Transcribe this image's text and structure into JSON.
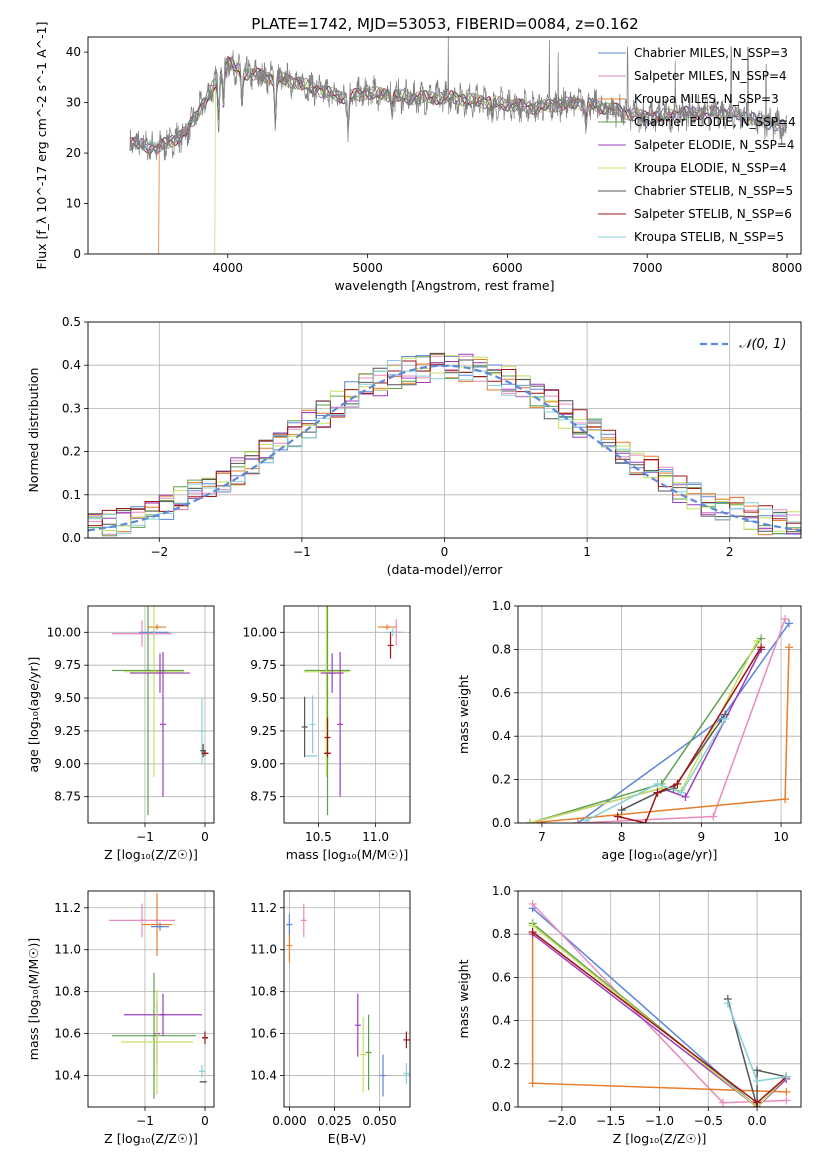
{
  "title": "PLATE=1742, MJD=53053, FIBERID=0084, z=0.162",
  "colors": {
    "chabrier_miles": "#5b86d9",
    "salpeter_miles": "#e88bc0",
    "kroupa_miles": "#e87d2a",
    "chabrier_elodie": "#5fa04e",
    "salpeter_elodie": "#9b3fc0",
    "kroupa_elodie": "#c8e060",
    "chabrier_stelib": "#555555",
    "salpeter_stelib": "#a01515",
    "kroupa_stelib": "#86cfd8",
    "gaussian": "#5b8bd8",
    "data": "#808080"
  },
  "chart_data": [
    {
      "id": "spectrum",
      "type": "line",
      "xlabel": "wavelength [Angstrom, rest frame]",
      "ylabel": "Flux [f_λ 10^-17 erg cm^-2 s^-1 A^-1]",
      "xlim": [
        3000,
        8100
      ],
      "ylim": [
        0,
        43
      ],
      "xticks": [
        "4000",
        "5000",
        "6000",
        "7000",
        "8000"
      ],
      "yticks": [
        "0",
        "10",
        "20",
        "30",
        "40"
      ],
      "legend_position": "upper right",
      "legend": [
        "Chabrier MILES, N_SSP=3",
        "Salpeter MILES, N_SSP=4",
        "Kroupa MILES, N_SSP=3",
        "Chabrier ELODIE, N_SSP=4",
        "Salpeter ELODIE, N_SSP=4",
        "Kroupa ELODIE, N_SSP=4",
        "Chabrier STELIB, N_SSP=5",
        "Salpeter STELIB, N_SSP=6",
        "Kroupa STELIB, N_SSP=5"
      ],
      "continuum": [
        [
          3300,
          22
        ],
        [
          3500,
          21
        ],
        [
          3700,
          24
        ],
        [
          3850,
          31
        ],
        [
          4000,
          38
        ],
        [
          4100,
          36
        ],
        [
          4300,
          35
        ],
        [
          4500,
          34
        ],
        [
          4700,
          32
        ],
        [
          4850,
          31
        ],
        [
          5000,
          32
        ],
        [
          5300,
          31
        ],
        [
          5600,
          31
        ],
        [
          5900,
          30
        ],
        [
          6200,
          29
        ],
        [
          6500,
          30
        ],
        [
          6700,
          29
        ],
        [
          7000,
          27
        ],
        [
          7300,
          28
        ],
        [
          7600,
          28
        ],
        [
          8000,
          25
        ]
      ],
      "dropouts": [
        [
          3500,
          "kroupa_miles"
        ],
        [
          3900,
          "kroupa_elodie"
        ],
        [
          6780,
          "kroupa_elodie"
        ],
        [
          7400,
          "salpeter_stelib"
        ]
      ]
    },
    {
      "id": "residuals",
      "type": "histogram",
      "xlabel": "(data-model)/error",
      "ylabel": "Normed distribution",
      "xlim": [
        -2.5,
        2.5
      ],
      "ylim": [
        0,
        0.5
      ],
      "xticks": [
        "−2",
        "−1",
        "0",
        "1",
        "2"
      ],
      "yticks": [
        "0.0",
        "0.1",
        "0.2",
        "0.3",
        "0.4",
        "0.5"
      ],
      "legend": [
        "𝒩(0, 1)"
      ],
      "legend_position": "upper right",
      "bin_width": 0.1
    },
    {
      "id": "age_vs_Z",
      "type": "errorbar",
      "xlabel": "Z [log₁₀(Z/Z☉)]",
      "ylabel": "age  [log₁₀(age/yr)]",
      "xlim": [
        -1.95,
        0.15
      ],
      "ylim": [
        8.55,
        10.2
      ],
      "xticks": [
        "−1",
        "0"
      ],
      "yticks": [
        "8.75",
        "9.00",
        "9.25",
        "9.50",
        "9.75",
        "10.00"
      ],
      "points": [
        {
          "model": "salpeter_miles",
          "x": -1.05,
          "y": 9.99,
          "xerr": 0.5,
          "yerr": 0.1
        },
        {
          "model": "chabrier_miles",
          "x": -0.85,
          "y": 10.0,
          "xerr": 0.25,
          "yerr": 0.05
        },
        {
          "model": "kroupa_miles",
          "x": -0.8,
          "y": 10.04,
          "xerr": 0.15,
          "yerr": 0.02
        },
        {
          "model": "chabrier_elodie",
          "x": -0.95,
          "y": 9.71,
          "xerr": 0.6,
          "yerr": 1.1
        },
        {
          "model": "kroupa_elodie",
          "x": -0.85,
          "y": 9.7,
          "xerr": 0.5,
          "yerr": 0.8
        },
        {
          "model": "salpeter_elodie",
          "x": -0.75,
          "y": 9.69,
          "xerr": 0.5,
          "yerr": 0.15
        },
        {
          "model": "salpeter_elodie",
          "x": -0.7,
          "y": 9.3,
          "xerr": 0.0,
          "yerr": 0.55
        },
        {
          "model": "kroupa_stelib",
          "x": -0.05,
          "y": 9.25,
          "xerr": 0.03,
          "yerr": 0.25
        },
        {
          "model": "salpeter_stelib",
          "x": 0.0,
          "y": 9.08,
          "xerr": 0.06,
          "yerr": 0.02
        },
        {
          "model": "chabrier_stelib",
          "x": -0.03,
          "y": 9.1,
          "xerr": 0.03,
          "yerr": 0.05
        }
      ]
    },
    {
      "id": "age_vs_mass",
      "type": "errorbar",
      "xlabel": "mass [log₁₀(M/M☉)]",
      "ylabel": "",
      "xlim": [
        10.2,
        11.3
      ],
      "ylim": [
        8.55,
        10.2
      ],
      "xticks": [
        "10.5",
        "11.0"
      ],
      "yticks": [
        "8.75",
        "9.00",
        "9.25",
        "9.50",
        "9.75",
        "10.00"
      ],
      "points": [
        {
          "model": "kroupa_miles",
          "x": 11.1,
          "y": 10.04,
          "xerr": 0.08,
          "yerr": 0.02
        },
        {
          "model": "salpeter_miles",
          "x": 11.18,
          "y": 10.0,
          "xerr": 0.05,
          "yerr": 0.1
        },
        {
          "model": "kroupa_stelib",
          "x": 11.15,
          "y": 10.0,
          "xerr": 0.05,
          "yerr": 0.03
        },
        {
          "model": "salpeter_stelib",
          "x": 11.13,
          "y": 9.9,
          "xerr": 0.0,
          "yerr": 0.1
        },
        {
          "model": "chabrier_elodie",
          "x": 10.58,
          "y": 9.71,
          "xerr": 0.2,
          "yerr": 1.1
        },
        {
          "model": "kroupa_elodie",
          "x": 10.57,
          "y": 9.7,
          "xerr": 0.2,
          "yerr": 0.8
        },
        {
          "model": "salpeter_elodie",
          "x": 10.62,
          "y": 9.69,
          "xerr": 0.1,
          "yerr": 0.15
        },
        {
          "model": "salpeter_elodie",
          "x": 10.69,
          "y": 9.3,
          "xerr": 0.0,
          "yerr": 0.55
        },
        {
          "model": "chabrier_stelib",
          "x": 10.38,
          "y": 9.28,
          "xerr": 0.0,
          "yerr": 0.23
        },
        {
          "model": "kroupa_stelib",
          "x": 10.44,
          "y": 9.06,
          "xerr": 0.05,
          "yerr": 0.0
        },
        {
          "model": "kroupa_stelib",
          "x": 10.45,
          "y": 9.3,
          "xerr": 0.0,
          "yerr": 0.22
        },
        {
          "model": "salpeter_stelib",
          "x": 10.58,
          "y": 9.08,
          "xerr": 0.03,
          "yerr": 0.0
        },
        {
          "model": "salpeter_stelib",
          "x": 10.58,
          "y": 9.2,
          "xerr": 0.0,
          "yerr": 0.15
        }
      ]
    },
    {
      "id": "weight_vs_age",
      "type": "line",
      "xlabel": "age  [log₁₀(age/yr)]",
      "ylabel": "mass weight",
      "xlim": [
        6.7,
        10.25
      ],
      "ylim": [
        0,
        1.0
      ],
      "xticks": [
        "7",
        "8",
        "9",
        "10"
      ],
      "yticks": [
        "0.0",
        "0.2",
        "0.4",
        "0.6",
        "0.8",
        "1.0"
      ],
      "series": [
        {
          "model": "chabrier_miles",
          "x": [
            7.45,
            9.25,
            10.1
          ],
          "y": [
            0.0,
            0.48,
            0.92
          ]
        },
        {
          "model": "salpeter_miles",
          "x": [
            7.45,
            9.15,
            10.05
          ],
          "y": [
            0.0,
            0.03,
            0.94
          ]
        },
        {
          "model": "kroupa_miles",
          "x": [
            6.85,
            10.05,
            10.1
          ],
          "y": [
            0.0,
            0.11,
            0.81
          ]
        },
        {
          "model": "chabrier_elodie",
          "x": [
            6.85,
            8.5,
            9.75
          ],
          "y": [
            0.0,
            0.18,
            0.85
          ]
        },
        {
          "model": "salpeter_elodie",
          "x": [
            6.85,
            8.5,
            8.8,
            9.75
          ],
          "y": [
            0.0,
            0.16,
            0.12,
            0.8
          ]
        },
        {
          "model": "kroupa_elodie",
          "x": [
            6.85,
            8.5,
            8.75,
            9.7
          ],
          "y": [
            0.0,
            0.16,
            0.15,
            0.84
          ]
        },
        {
          "model": "chabrier_stelib",
          "x": [
            8.0,
            8.45,
            8.65,
            9.3
          ],
          "y": [
            0.06,
            0.14,
            0.16,
            0.5
          ]
        },
        {
          "model": "salpeter_stelib",
          "x": [
            7.95,
            8.3,
            8.45,
            8.7,
            9.75
          ],
          "y": [
            0.03,
            0.0,
            0.14,
            0.18,
            0.81
          ]
        },
        {
          "model": "kroupa_stelib",
          "x": [
            7.55,
            8.45,
            8.75,
            9.3
          ],
          "y": [
            0.01,
            0.18,
            0.14,
            0.48
          ]
        }
      ]
    },
    {
      "id": "mass_vs_Z",
      "type": "errorbar",
      "xlabel": "Z [log₁₀(Z/Z☉)]",
      "ylabel": "mass [log₁₀(M/M☉)]",
      "xlim": [
        -1.95,
        0.15
      ],
      "ylim": [
        10.25,
        11.28
      ],
      "xticks": [
        "−1",
        "0"
      ],
      "yticks": [
        "10.4",
        "10.6",
        "10.8",
        "11.0",
        "11.2"
      ],
      "points": [
        {
          "model": "salpeter_miles",
          "x": -1.05,
          "y": 11.14,
          "xerr": 0.55,
          "yerr": 0.08
        },
        {
          "model": "kroupa_miles",
          "x": -0.8,
          "y": 11.12,
          "xerr": 0.25,
          "yerr": 0.15
        },
        {
          "model": "chabrier_miles",
          "x": -0.75,
          "y": 11.11,
          "xerr": 0.15,
          "yerr": 0.02
        },
        {
          "model": "salpeter_elodie",
          "x": -0.7,
          "y": 10.69,
          "xerr": 0.65,
          "yerr": 0.1
        },
        {
          "model": "salpeter_elodie",
          "x": -0.8,
          "y": 10.6,
          "xerr": 0.0,
          "yerr": 0.15
        },
        {
          "model": "chabrier_elodie",
          "x": -0.85,
          "y": 10.59,
          "xerr": 0.7,
          "yerr": 0.3
        },
        {
          "model": "kroupa_elodie",
          "x": -0.8,
          "y": 10.56,
          "xerr": 0.6,
          "yerr": 0.25
        },
        {
          "model": "salpeter_stelib",
          "x": 0.0,
          "y": 10.58,
          "xerr": 0.05,
          "yerr": 0.03
        },
        {
          "model": "kroupa_stelib",
          "x": -0.05,
          "y": 10.42,
          "xerr": 0.03,
          "yerr": 0.03
        },
        {
          "model": "chabrier_stelib",
          "x": -0.03,
          "y": 10.37,
          "xerr": 0.06,
          "yerr": 0.0
        }
      ]
    },
    {
      "id": "mass_vs_ebv",
      "type": "errorbar",
      "xlabel": "E(B-V)",
      "ylabel": "",
      "xlim": [
        -0.003,
        0.067
      ],
      "ylim": [
        10.25,
        11.28
      ],
      "xticks": [
        "0.000",
        "0.025",
        "0.050"
      ],
      "yticks": [
        "10.4",
        "10.6",
        "10.8",
        "11.0",
        "11.2"
      ],
      "points": [
        {
          "model": "kroupa_miles",
          "x": 0.0,
          "y": 11.02,
          "xerr": 0.0,
          "yerr": 0.08
        },
        {
          "model": "chabrier_miles",
          "x": 0.0,
          "y": 11.12,
          "xerr": 0.0,
          "yerr": 0.05
        },
        {
          "model": "salpeter_miles",
          "x": 0.008,
          "y": 11.14,
          "xerr": 0.0,
          "yerr": 0.08
        },
        {
          "model": "salpeter_elodie",
          "x": 0.038,
          "y": 10.64,
          "xerr": 0.0,
          "yerr": 0.15
        },
        {
          "model": "kroupa_elodie",
          "x": 0.041,
          "y": 10.5,
          "xerr": 0.0,
          "yerr": 0.18
        },
        {
          "model": "chabrier_elodie",
          "x": 0.044,
          "y": 10.51,
          "xerr": 0.0,
          "yerr": 0.18
        },
        {
          "model": "chabrier_miles",
          "x": 0.052,
          "y": 10.4,
          "xerr": 0.0,
          "yerr": 0.1
        },
        {
          "model": "salpeter_stelib",
          "x": 0.065,
          "y": 10.57,
          "xerr": 0.0,
          "yerr": 0.04
        },
        {
          "model": "kroupa_stelib",
          "x": 0.065,
          "y": 10.41,
          "xerr": 0.0,
          "yerr": 0.05
        }
      ]
    },
    {
      "id": "weight_vs_Z",
      "type": "line",
      "xlabel": "Z [log₁₀(Z/Z☉)]",
      "ylabel": "mass weight",
      "xlim": [
        -2.45,
        0.45
      ],
      "ylim": [
        0,
        1.0
      ],
      "xticks": [
        "−2.0",
        "−1.5",
        "−1.0",
        "−0.5",
        "0.0"
      ],
      "yticks": [
        "0.0",
        "0.2",
        "0.4",
        "0.6",
        "0.8",
        "1.0"
      ],
      "series": [
        {
          "model": "chabrier_miles",
          "x": [
            -2.3,
            0.0,
            0.3
          ],
          "y": [
            0.92,
            0.0,
            0.13
          ]
        },
        {
          "model": "salpeter_miles",
          "x": [
            -2.3,
            -0.35,
            0.3
          ],
          "y": [
            0.94,
            0.02,
            0.03
          ]
        },
        {
          "model": "kroupa_miles",
          "x": [
            -2.3,
            -2.3,
            0.3
          ],
          "y": [
            0.81,
            0.11,
            0.07
          ]
        },
        {
          "model": "chabrier_elodie",
          "x": [
            -2.3,
            0.0,
            0.3
          ],
          "y": [
            0.85,
            0.0,
            0.14
          ]
        },
        {
          "model": "salpeter_elodie",
          "x": [
            -2.3,
            0.0,
            0.3
          ],
          "y": [
            0.8,
            0.0,
            0.13
          ]
        },
        {
          "model": "kroupa_elodie",
          "x": [
            -2.3,
            0.0,
            0.3
          ],
          "y": [
            0.84,
            0.0,
            0.14
          ]
        },
        {
          "model": "chabrier_stelib",
          "x": [
            -0.3,
            0.0,
            0.0,
            0.3
          ],
          "y": [
            0.5,
            0.0,
            0.17,
            0.14
          ]
        },
        {
          "model": "salpeter_stelib",
          "x": [
            -2.3,
            0.0,
            0.3
          ],
          "y": [
            0.81,
            0.02,
            0.14
          ]
        },
        {
          "model": "kroupa_stelib",
          "x": [
            -0.3,
            0.0,
            0.3
          ],
          "y": [
            0.48,
            0.12,
            0.14
          ]
        }
      ]
    }
  ]
}
